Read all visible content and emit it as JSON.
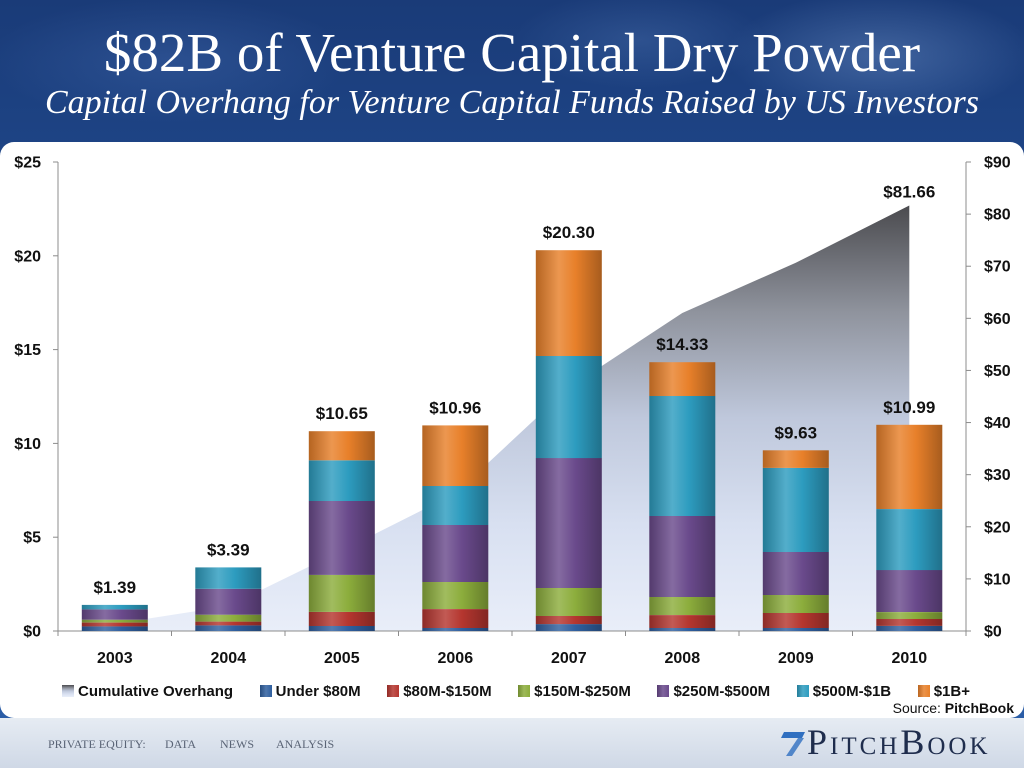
{
  "slide": {
    "title": "$82B of Venture Capital Dry Powder",
    "subtitle": "Capital Overhang for Venture Capital Funds Raised by US Investors",
    "source_prefix": "Source:",
    "source_name": "PitchBook"
  },
  "chart_data": {
    "type": "bar",
    "stacked": true,
    "categories": [
      "2003",
      "2004",
      "2005",
      "2006",
      "2007",
      "2008",
      "2009",
      "2010"
    ],
    "series": [
      {
        "name": "Under $80M",
        "color": "#2f5f9f",
        "values": [
          0.25,
          0.3,
          0.27,
          0.16,
          0.37,
          0.16,
          0.16,
          0.27
        ]
      },
      {
        "name": "$80M-$150M",
        "color": "#b5362f",
        "values": [
          0.2,
          0.2,
          0.75,
          1.01,
          0.43,
          0.69,
          0.8,
          0.37
        ]
      },
      {
        "name": "$150M-$250M",
        "color": "#8cad3c",
        "values": [
          0.15,
          0.37,
          1.97,
          1.44,
          1.49,
          0.96,
          0.96,
          0.37
        ]
      },
      {
        "name": "$250M-$500M",
        "color": "#6a4a8c",
        "values": [
          0.55,
          1.38,
          3.94,
          3.04,
          6.93,
          4.32,
          2.29,
          2.24
        ]
      },
      {
        "name": "$500M-$1B",
        "color": "#2d9cbf",
        "values": [
          0.24,
          1.14,
          2.17,
          2.08,
          5.44,
          6.4,
          4.48,
          3.25
        ]
      },
      {
        "name": "$1B+",
        "color": "#e8802a",
        "values": [
          0.0,
          0.0,
          1.55,
          3.23,
          5.64,
          1.8,
          0.94,
          4.49
        ]
      }
    ],
    "totals": [
      1.39,
      3.39,
      10.65,
      10.96,
      20.3,
      14.33,
      9.63,
      10.99
    ],
    "total_labels": [
      "$1.39",
      "$3.39",
      "$10.65",
      "$10.96",
      "$20.30",
      "$14.33",
      "$9.63",
      "$10.99"
    ],
    "overlay": {
      "type": "area",
      "name": "Cumulative Overhang",
      "axis": "right",
      "values": [
        1.39,
        4.78,
        15.43,
        26.39,
        46.69,
        61.02,
        70.65,
        81.66
      ],
      "peak_label": "$81.66",
      "gradient_colors": [
        "#4b4b4f",
        "#8f939d",
        "#bfc8dc",
        "#d8e0f1",
        "#e9eef9"
      ]
    },
    "y_left": {
      "range": [
        0,
        25
      ],
      "tick_values": [
        0,
        5,
        10,
        15,
        20,
        25
      ],
      "tick_labels": [
        "$0",
        "$5",
        "$10",
        "$15",
        "$20",
        "$25"
      ]
    },
    "y_right": {
      "range": [
        0,
        90
      ],
      "tick_values": [
        0,
        10,
        20,
        30,
        40,
        50,
        60,
        70,
        80,
        90
      ],
      "tick_labels": [
        "$0",
        "$10",
        "$20",
        "$30",
        "$40",
        "$50",
        "$60",
        "$70",
        "$80",
        "$90"
      ]
    },
    "grid": false,
    "legend_position": "bottom"
  },
  "footer": {
    "nav": [
      "PRIVATE EQUITY:",
      "DATA",
      "NEWS",
      "ANALYSIS"
    ],
    "logo_text": "PitchBook",
    "logo_icon": "pitchbook-seven-icon",
    "logo_color": "#2f6fc0"
  }
}
